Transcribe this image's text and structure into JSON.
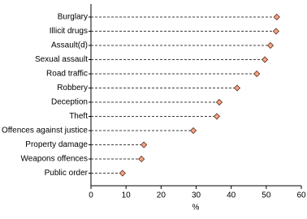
{
  "chart_data": {
    "type": "dot",
    "categories": [
      "Burglary",
      "Illicit drugs",
      "Assault(d)",
      "Sexual assault",
      "Road traffic",
      "Robbery",
      "Deception",
      "Theft",
      "Offences against justice",
      "Property damage",
      "Weapons offences",
      "Public order"
    ],
    "values": [
      53.0,
      52.8,
      51.2,
      49.6,
      47.3,
      41.7,
      36.6,
      35.9,
      29.2,
      15.1,
      14.4,
      9.0
    ],
    "color": "#f4a582",
    "xlim": [
      0,
      60
    ],
    "xticks": [
      0,
      10,
      20,
      30,
      40,
      50,
      60
    ],
    "xlabel": "%"
  }
}
